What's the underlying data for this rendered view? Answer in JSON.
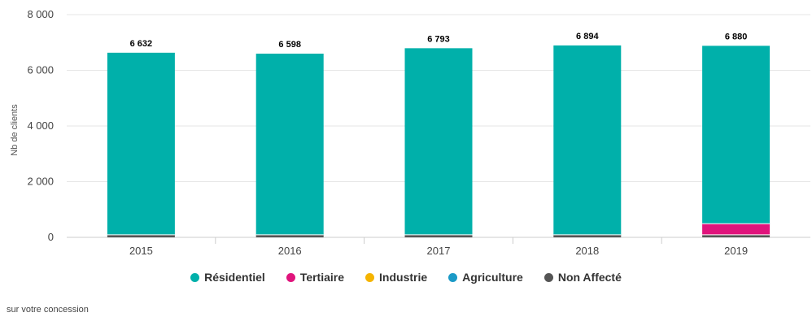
{
  "chart_data": {
    "type": "bar",
    "stacked": true,
    "categories": [
      "2015",
      "2016",
      "2017",
      "2018",
      "2019"
    ],
    "series": [
      {
        "name": "Résidentiel",
        "color": "#00b0aa",
        "values": [
          6542,
          6508,
          6703,
          6804,
          6390
        ]
      },
      {
        "name": "Tertiaire",
        "color": "#e0147c",
        "values": [
          0,
          0,
          0,
          0,
          400
        ]
      },
      {
        "name": "Industrie",
        "color": "#f5b400",
        "values": [
          0,
          0,
          0,
          0,
          0
        ]
      },
      {
        "name": "Agriculture",
        "color": "#1b9ac7",
        "values": [
          0,
          0,
          0,
          0,
          0
        ]
      },
      {
        "name": "Non Affecté",
        "color": "#555555",
        "values": [
          90,
          90,
          90,
          90,
          90
        ]
      }
    ],
    "totals": [
      "6 632",
      "6 598",
      "6 793",
      "6 894",
      "6 880"
    ],
    "yticks": [
      0,
      2000,
      4000,
      6000,
      8000
    ],
    "ytick_labels": [
      "0",
      "2 000",
      "4 000",
      "6 000",
      "8 000"
    ],
    "ylim": [
      0,
      8000
    ],
    "ylabel": "Nb de clients",
    "xlabel": "",
    "title": "",
    "legend_position": "bottom",
    "grid": true
  },
  "footnote": "sur votre concession"
}
